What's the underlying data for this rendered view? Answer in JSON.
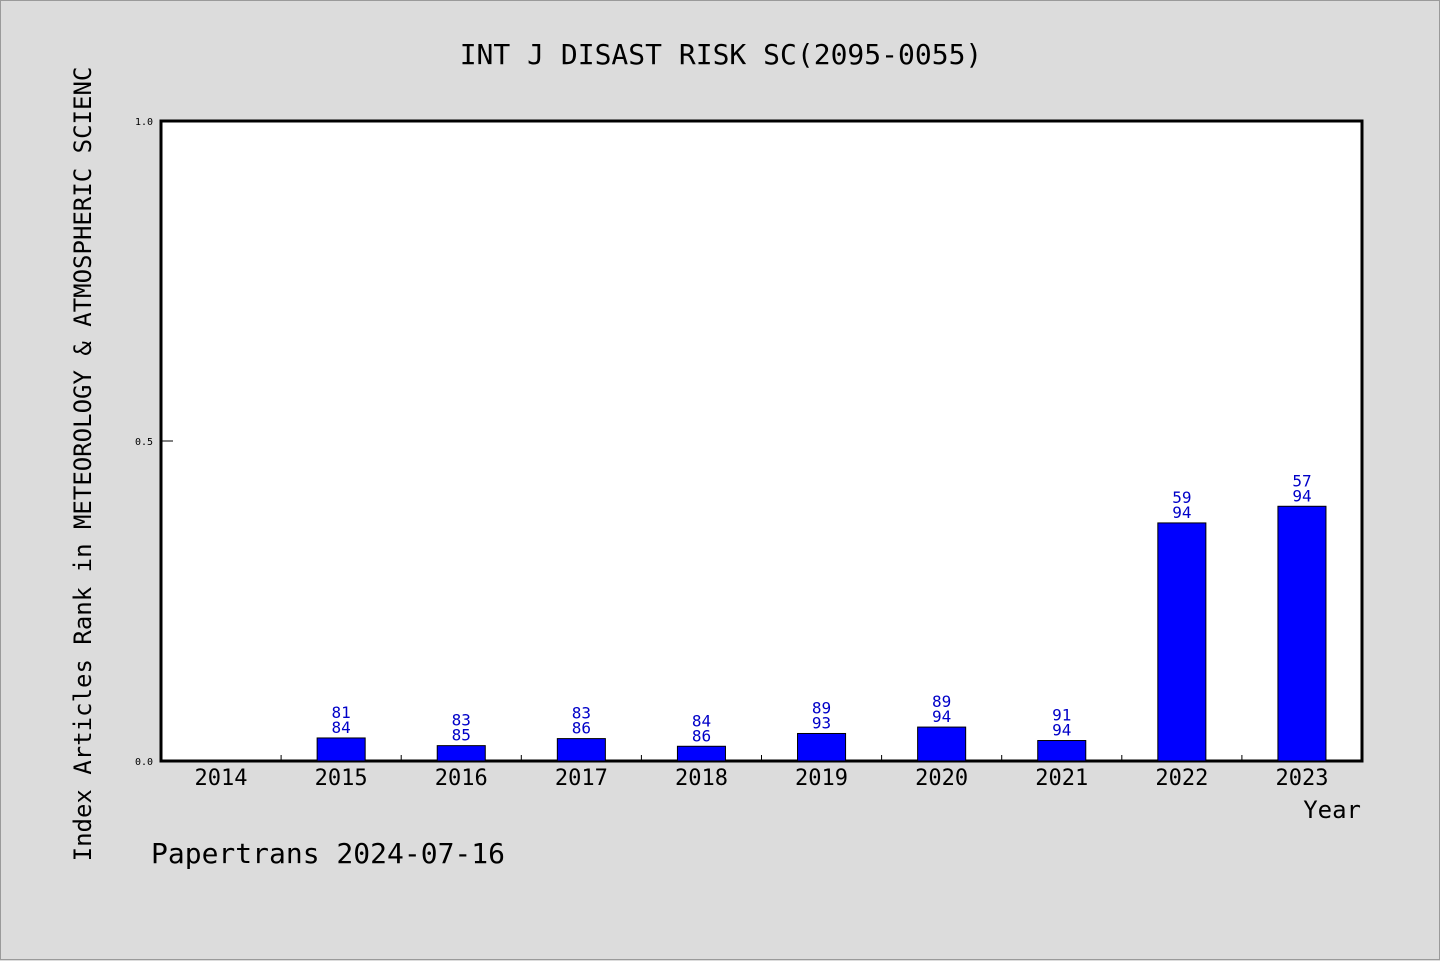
{
  "chart_data": {
    "type": "bar",
    "title": "INT J DISAST RISK SC(2095-0055)",
    "xlabel": "Year",
    "ylabel": "Index Articles Rank in METEOROLOGY & ATMOSPHERIC SCIENC",
    "categories": [
      "2014",
      "2015",
      "2016",
      "2017",
      "2018",
      "2019",
      "2020",
      "2021",
      "2022",
      "2023"
    ],
    "values": [
      0,
      0.036,
      0.024,
      0.035,
      0.023,
      0.043,
      0.053,
      0.032,
      0.372,
      0.398
    ],
    "rank_labels": [
      [
        "",
        ""
      ],
      [
        "81",
        "84"
      ],
      [
        "83",
        "85"
      ],
      [
        "83",
        "86"
      ],
      [
        "84",
        "86"
      ],
      [
        "89",
        "93"
      ],
      [
        "89",
        "94"
      ],
      [
        "91",
        "94"
      ],
      [
        "59",
        "94"
      ],
      [
        "57",
        "94"
      ]
    ],
    "ylim": [
      0,
      1
    ],
    "yticks": [
      "0.0",
      "0.5",
      "1.0"
    ],
    "bar_color": "#0000ff",
    "label_color": "#0000c8",
    "grid": false,
    "legend": "none"
  },
  "footer": "Papertrans 2024-07-16"
}
